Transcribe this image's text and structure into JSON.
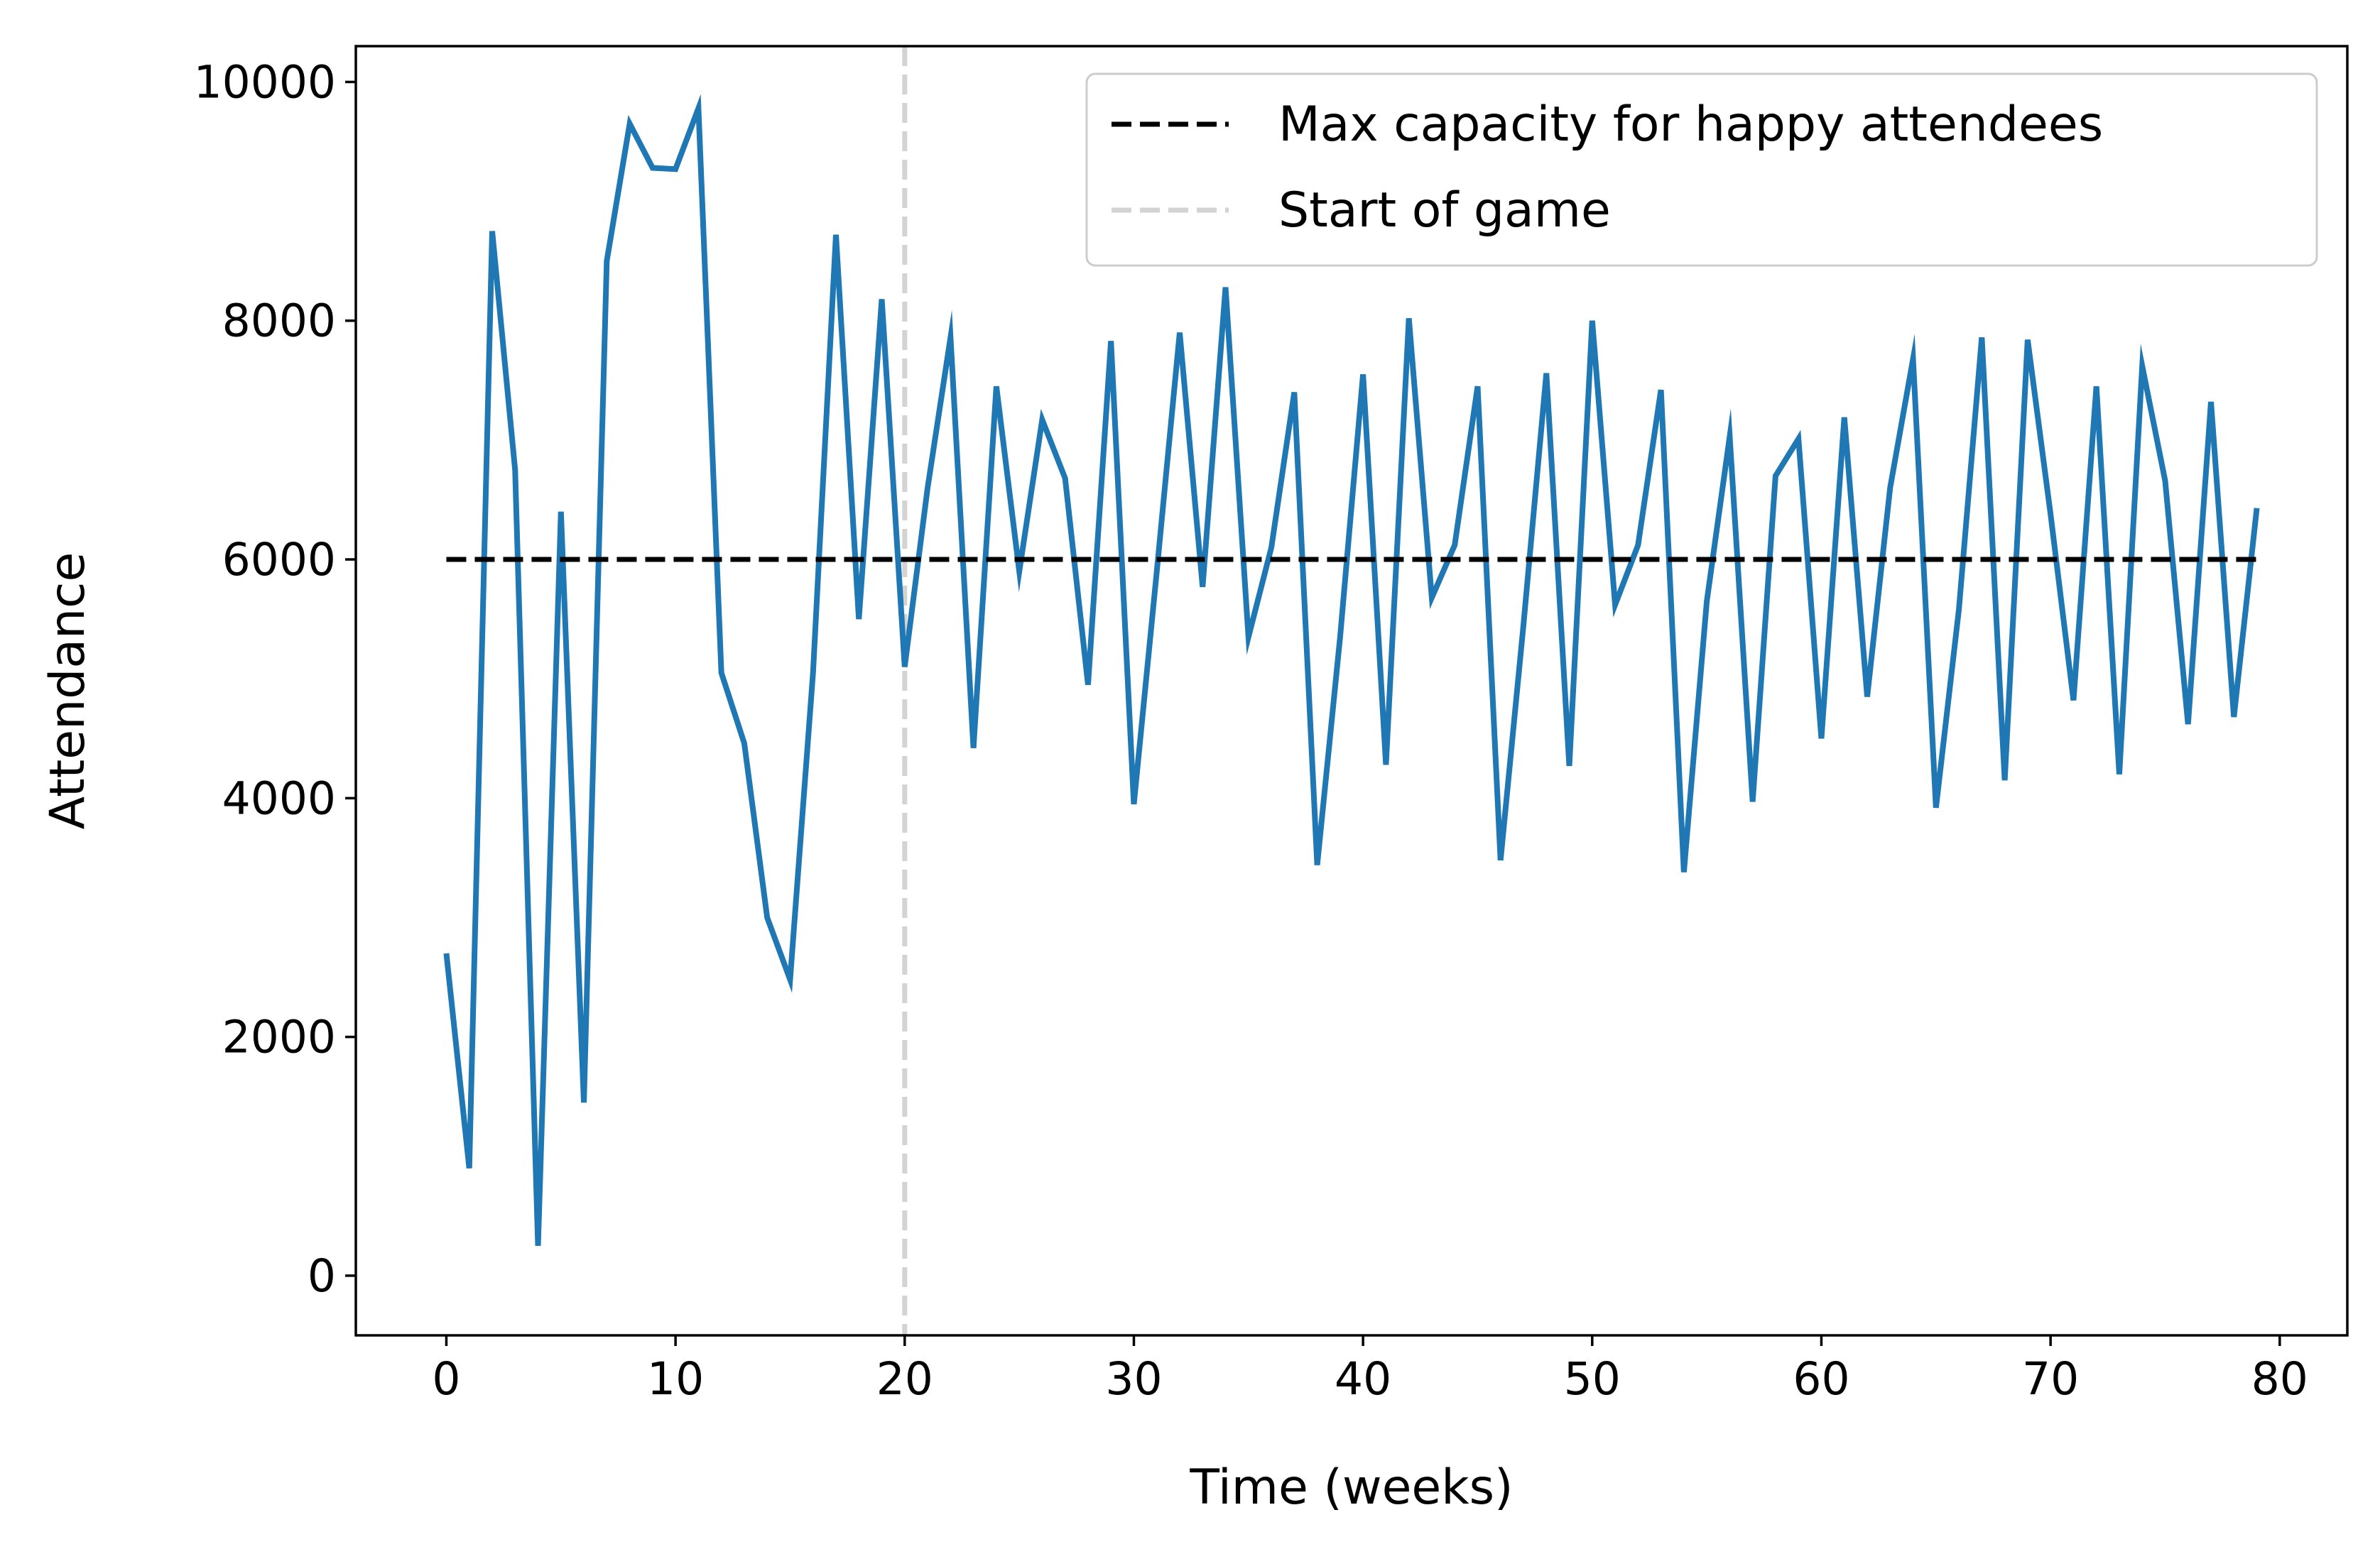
{
  "chart_data": {
    "type": "line",
    "title": "",
    "xlabel": "Time (weeks)",
    "ylabel": "Attendance",
    "xlim": [
      -3.95,
      82.95
    ],
    "ylim": [
      -500,
      10300
    ],
    "xticks": [
      0,
      10,
      20,
      30,
      40,
      50,
      60,
      70,
      80
    ],
    "xtick_labels": [
      "0",
      "10",
      "20",
      "30",
      "40",
      "50",
      "60",
      "70",
      "80"
    ],
    "yticks": [
      0,
      2000,
      4000,
      6000,
      8000,
      10000
    ],
    "ytick_labels": [
      "0",
      "2000",
      "4000",
      "6000",
      "8000",
      "10000"
    ],
    "grid": false,
    "legend_position": "top-right",
    "series": [
      {
        "name": "",
        "color": "#1f77b4",
        "style": "solid",
        "x": [
          0,
          1,
          2,
          3,
          4,
          5,
          6,
          7,
          8,
          9,
          10,
          11,
          12,
          13,
          14,
          15,
          16,
          17,
          18,
          19,
          20,
          21,
          22,
          23,
          24,
          25,
          26,
          27,
          28,
          29,
          30,
          31,
          32,
          33,
          34,
          35,
          36,
          37,
          38,
          39,
          40,
          41,
          42,
          43,
          44,
          45,
          46,
          47,
          48,
          49,
          50,
          51,
          52,
          53,
          54,
          55,
          56,
          57,
          58,
          59,
          60,
          61,
          62,
          63,
          64,
          65,
          66,
          67,
          68,
          69,
          70,
          71,
          72,
          73,
          74,
          75,
          76,
          77,
          78,
          79
        ],
        "y": [
          2700,
          900,
          8750,
          6750,
          250,
          6400,
          1450,
          8500,
          9650,
          9280,
          9270,
          9780,
          5050,
          4460,
          3000,
          2480,
          5050,
          8720,
          5500,
          8180,
          5100,
          6600,
          7860,
          4420,
          7450,
          5900,
          7170,
          6680,
          4950,
          7830,
          3950,
          5900,
          7900,
          5770,
          8280,
          5350,
          6100,
          7400,
          3440,
          5350,
          7550,
          4280,
          8020,
          5680,
          6120,
          7450,
          3480,
          5450,
          7560,
          4270,
          8000,
          5620,
          6120,
          7420,
          3380,
          5650,
          7030,
          3970,
          6700,
          7010,
          4500,
          7190,
          4850,
          6600,
          7680,
          3920,
          5580,
          7860,
          4150,
          7840,
          6380,
          4820,
          7450,
          4200,
          7620,
          6660,
          4620,
          7320,
          4680,
          6430
        ]
      }
    ],
    "reference_lines": [
      {
        "name": "Max capacity for happy attendees",
        "orientation": "horizontal",
        "value": 6000,
        "x_range": [
          0,
          79
        ],
        "color": "#000000",
        "style": "dashed"
      },
      {
        "name": "Start of game",
        "orientation": "vertical",
        "value": 20,
        "color": "#d3d3d3",
        "style": "dashed"
      }
    ],
    "legend": [
      {
        "label": "Max capacity for happy attendees",
        "color": "#000000",
        "style": "dashed"
      },
      {
        "label": "Start of game",
        "color": "#d3d3d3",
        "style": "dashed"
      }
    ]
  }
}
